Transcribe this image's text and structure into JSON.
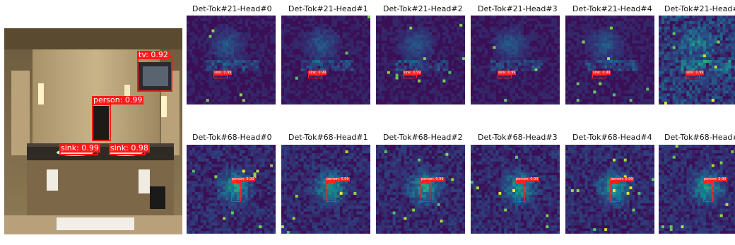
{
  "photo": {
    "detections": [
      {
        "label": "tv: 0.92"
      },
      {
        "label": "person: 0.99"
      },
      {
        "label": "sink: 0.99"
      },
      {
        "label": "sink: 0.98"
      }
    ]
  },
  "rows": [
    {
      "titles": [
        "Det-Tok#21-Head#0",
        "Det-Tok#21-Head#1",
        "Det-Tok#21-Head#2",
        "Det-Tok#21-Head#3",
        "Det-Tok#21-Head#4",
        "Det-Tok#21-Head#"
      ],
      "label": "sink: 0.99"
    },
    {
      "titles": [
        "Det-Tok#68-Head#0",
        "Det-Tok#68-Head#1",
        "Det-Tok#68-Head#2",
        "Det-Tok#68-Head#3",
        "Det-Tok#68-Head#4",
        "Det-Tok#68-Head#"
      ],
      "label": "person: 0.99"
    }
  ],
  "colors": {
    "box": "#ff1a1a",
    "heat_low": "#3b0f55",
    "heat_high": "#fde725"
  }
}
